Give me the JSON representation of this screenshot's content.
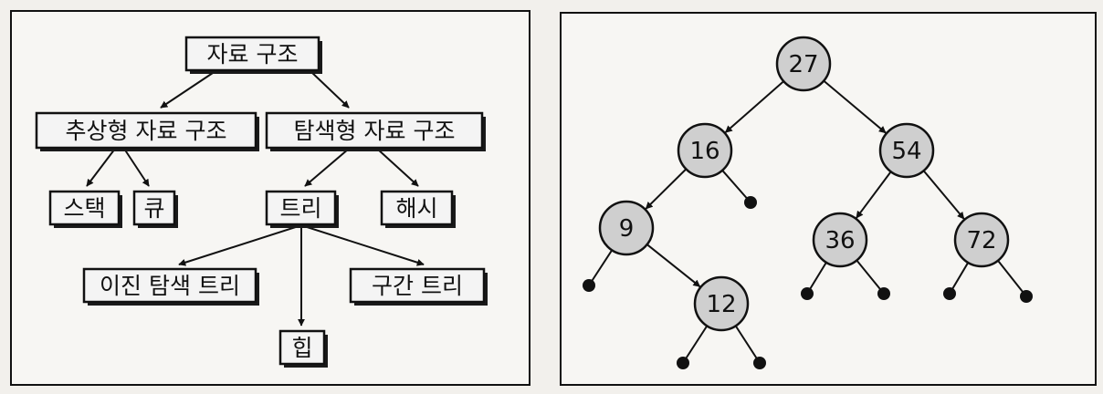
{
  "left_panel": {
    "boxes": [
      {
        "id": "root",
        "label": "자료 구조"
      },
      {
        "id": "abstract",
        "label": "추상형 자료 구조"
      },
      {
        "id": "search",
        "label": "탐색형 자료 구조"
      },
      {
        "id": "stack",
        "label": "스택"
      },
      {
        "id": "queue",
        "label": "큐"
      },
      {
        "id": "tree",
        "label": "트리"
      },
      {
        "id": "hash",
        "label": "해시"
      },
      {
        "id": "bst",
        "label": "이진 탐색 트리"
      },
      {
        "id": "interval",
        "label": "구간 트리"
      },
      {
        "id": "heap",
        "label": "힙"
      }
    ],
    "edges": [
      [
        "root",
        "abstract"
      ],
      [
        "root",
        "search"
      ],
      [
        "abstract",
        "stack"
      ],
      [
        "abstract",
        "queue"
      ],
      [
        "search",
        "tree"
      ],
      [
        "search",
        "hash"
      ],
      [
        "tree",
        "bst"
      ],
      [
        "tree",
        "heap"
      ],
      [
        "tree",
        "interval"
      ]
    ]
  },
  "right_panel": {
    "nodes": [
      {
        "id": "n27",
        "label": "27"
      },
      {
        "id": "n16",
        "label": "16"
      },
      {
        "id": "n54",
        "label": "54"
      },
      {
        "id": "n9",
        "label": "9"
      },
      {
        "id": "n36",
        "label": "36"
      },
      {
        "id": "n72",
        "label": "72"
      },
      {
        "id": "n12",
        "label": "12"
      }
    ],
    "edges": [
      [
        "n27",
        "n16"
      ],
      [
        "n27",
        "n54"
      ],
      [
        "n16",
        "n9"
      ],
      [
        "n54",
        "n36"
      ],
      [
        "n54",
        "n72"
      ],
      [
        "n9",
        "n12"
      ]
    ],
    "null_leaves": [
      {
        "parent": "n16",
        "side": "right"
      },
      {
        "parent": "n9",
        "side": "left"
      },
      {
        "parent": "n12",
        "side": "left"
      },
      {
        "parent": "n12",
        "side": "right"
      },
      {
        "parent": "n36",
        "side": "left"
      },
      {
        "parent": "n36",
        "side": "right"
      },
      {
        "parent": "n72",
        "side": "left"
      },
      {
        "parent": "n72",
        "side": "right"
      }
    ]
  }
}
